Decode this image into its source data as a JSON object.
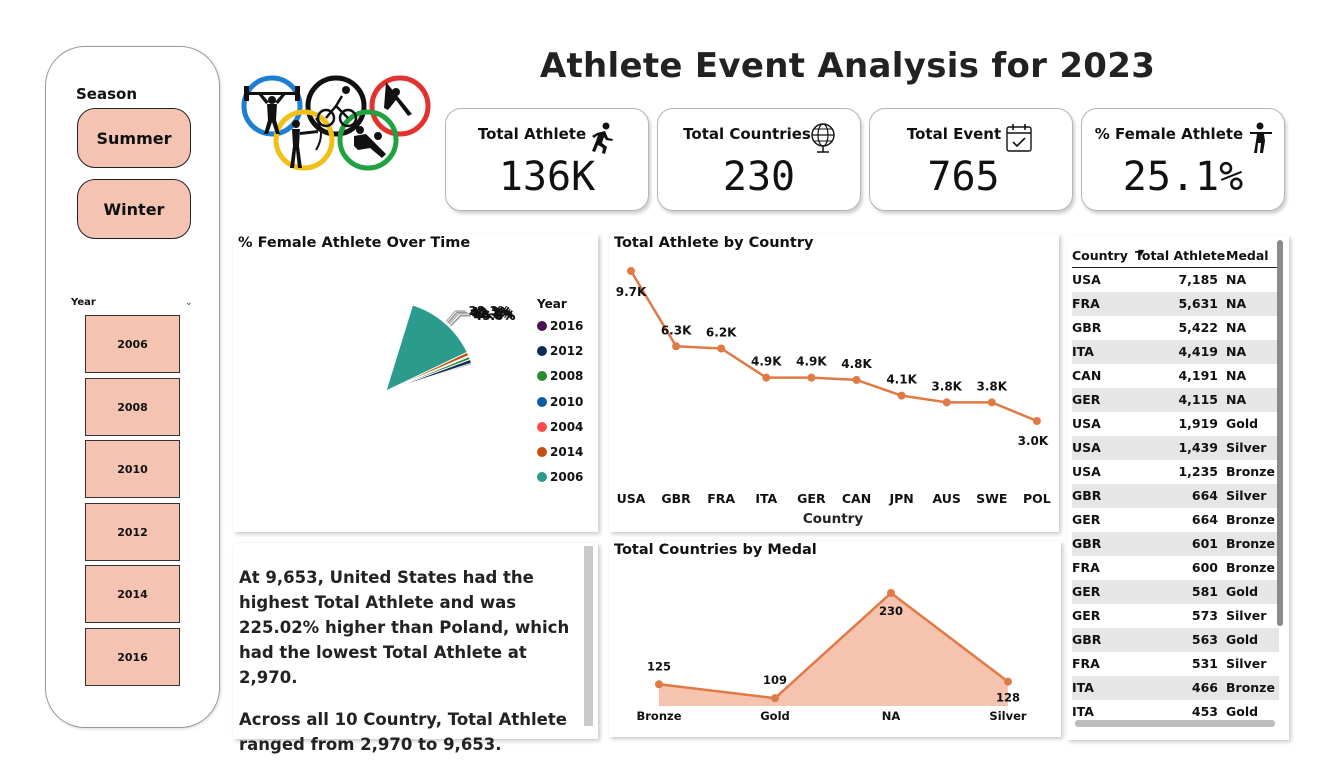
{
  "title": "Athlete Event Analysis for 2023",
  "colors": {
    "accent": "#e07a45",
    "area_fill": "#f6c4ae",
    "button_fill": "#f5c3b2"
  },
  "slicer": {
    "season_title": "Season",
    "season_options": [
      "Summer",
      "Winter"
    ],
    "year_title": "Year",
    "year_options": [
      "2006",
      "2008",
      "2010",
      "2012",
      "2014",
      "2016"
    ]
  },
  "kpis": [
    {
      "label": "Total Athlete",
      "value": "136K",
      "icon": "running-icon"
    },
    {
      "label": "Total Countries",
      "value": "230",
      "icon": "globe-icon"
    },
    {
      "label": "Total Event",
      "value": "765",
      "icon": "calendar-icon"
    },
    {
      "label": "% Female Athlete",
      "value": "25.1%",
      "icon": "female-athlete-icon"
    }
  ],
  "narrative": {
    "p1": "At 9,653, United States had the highest Total Athlete and was 225.02% higher than Poland, which had the lowest Total Athlete at 2,970.",
    "p2": "Across all 10 Country, Total Athlete ranged from 2,970 to 9,653."
  },
  "table": {
    "headers": [
      "Country",
      "Total Athlete",
      "Medal"
    ],
    "rows": [
      [
        "USA",
        "7,185",
        "NA"
      ],
      [
        "FRA",
        "5,631",
        "NA"
      ],
      [
        "GBR",
        "5,422",
        "NA"
      ],
      [
        "ITA",
        "4,419",
        "NA"
      ],
      [
        "CAN",
        "4,191",
        "NA"
      ],
      [
        "GER",
        "4,115",
        "NA"
      ],
      [
        "USA",
        "1,919",
        "Gold"
      ],
      [
        "USA",
        "1,439",
        "Silver"
      ],
      [
        "USA",
        "1,235",
        "Bronze"
      ],
      [
        "GBR",
        "664",
        "Silver"
      ],
      [
        "GER",
        "664",
        "Bronze"
      ],
      [
        "GBR",
        "601",
        "Bronze"
      ],
      [
        "FRA",
        "600",
        "Bronze"
      ],
      [
        "GER",
        "581",
        "Gold"
      ],
      [
        "GER",
        "573",
        "Silver"
      ],
      [
        "GBR",
        "563",
        "Gold"
      ],
      [
        "FRA",
        "531",
        "Silver"
      ],
      [
        "ITA",
        "466",
        "Bronze"
      ],
      [
        "ITA",
        "453",
        "Gold"
      ]
    ]
  },
  "chart_data": [
    {
      "type": "pie",
      "title": "% Female Athlete Over Time",
      "legend_title": "Year",
      "legend_placement": "right",
      "categories": [
        "2016",
        "2012",
        "2008",
        "2010",
        "2004",
        "2014",
        "2006"
      ],
      "values": [
        45.0,
        44.3,
        42.3,
        40.7,
        40.7,
        40.1,
        38.3
      ],
      "labels": [
        "45.0%",
        "44.3%",
        "42.3%",
        "40.7%",
        "40.7%",
        "40.1%",
        "38.3%"
      ],
      "colors": [
        "#4a1253",
        "#0e2a5a",
        "#2a8b2a",
        "#0f5aa6",
        "#fd4a4f",
        "#c54e12",
        "#2a9b8c"
      ]
    },
    {
      "type": "line",
      "title": "Total Athlete by Country",
      "xlabel": "Country",
      "ylabel": "",
      "categories": [
        "USA",
        "GBR",
        "FRA",
        "ITA",
        "GER",
        "CAN",
        "JPN",
        "AUS",
        "SWE",
        "POL"
      ],
      "values": [
        9653,
        6300,
        6200,
        4900,
        4900,
        4800,
        4100,
        3800,
        3800,
        2970
      ],
      "labels": [
        "9.7K",
        "6.3K",
        "6.2K",
        "4.9K",
        "4.9K",
        "4.8K",
        "4.1K",
        "3.8K",
        "3.8K",
        "3.0K"
      ],
      "grid": false
    },
    {
      "type": "area",
      "title": "Total Countries by Medal",
      "categories": [
        "Bronze",
        "Gold",
        "NA",
        "Silver"
      ],
      "values": [
        125,
        109,
        230,
        128
      ],
      "labels": [
        "125",
        "109",
        "230",
        "128"
      ],
      "grid": false
    }
  ]
}
